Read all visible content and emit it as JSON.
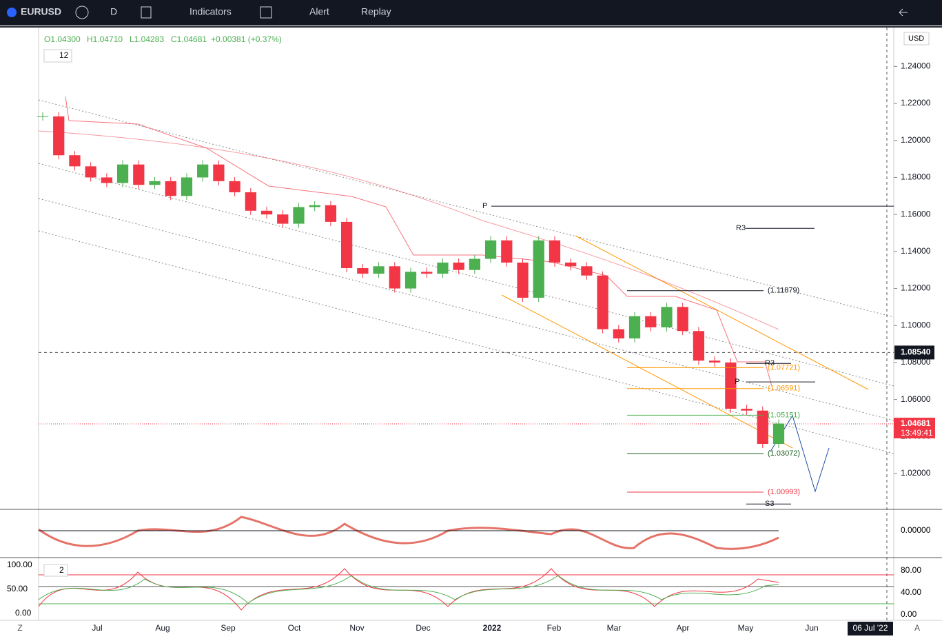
{
  "toolbar": {
    "symbol": "EURUSD",
    "interval": "D",
    "indicators": "Indicators",
    "alert": "Alert",
    "replay": "Replay"
  },
  "legend": {
    "open": "O1.04300",
    "high": "H1.04710",
    "low": "L1.04283",
    "close": "C1.04681",
    "change": "+0.00381 (+0.37%)",
    "indicator_count": "12"
  },
  "currency": "USD",
  "price_axis": {
    "ylim": [
      1.001,
      1.261
    ],
    "ticks": [
      {
        "value": 1.24,
        "label": "1.24000"
      },
      {
        "value": 1.22,
        "label": "1.22000"
      },
      {
        "value": 1.2,
        "label": "1.20000"
      },
      {
        "value": 1.18,
        "label": "1.18000"
      },
      {
        "value": 1.16,
        "label": "1.16000"
      },
      {
        "value": 1.14,
        "label": "1.14000"
      },
      {
        "value": 1.12,
        "label": "1.12000"
      },
      {
        "value": 1.1,
        "label": "1.10000"
      },
      {
        "value": 1.08,
        "label": "1.08000"
      },
      {
        "value": 1.06,
        "label": "1.06000"
      },
      {
        "value": 1.04,
        "label": "1.04000"
      },
      {
        "value": 1.02,
        "label": "1.02000"
      }
    ],
    "crosshair": {
      "value": 1.0854,
      "label": "1.08540"
    },
    "last_price": {
      "value": 1.04681,
      "label": "1.04681",
      "countdown": "13:49:41"
    }
  },
  "time_axis": {
    "labels": [
      "Jul",
      "Aug",
      "Sep",
      "Oct",
      "Nov",
      "Dec",
      "2022",
      "Feb",
      "Mar",
      "Apr",
      "May",
      "Jun"
    ],
    "cursor_date": "06 Jul '22",
    "left_button": "Z",
    "right_button": "A"
  },
  "candles": {
    "up_color": "#4caf50",
    "down_color": "#f23645",
    "closes": [
      1.213,
      1.192,
      1.186,
      1.18,
      1.177,
      1.187,
      1.176,
      1.178,
      1.17,
      1.18,
      1.187,
      1.178,
      1.172,
      1.162,
      1.16,
      1.155,
      1.164,
      1.165,
      1.156,
      1.131,
      1.128,
      1.132,
      1.12,
      1.129,
      1.128,
      1.134,
      1.13,
      1.136,
      1.146,
      1.134,
      1.115,
      1.146,
      1.134,
      1.132,
      1.127,
      1.098,
      1.093,
      1.105,
      1.099,
      1.11,
      1.097,
      1.081,
      1.08,
      1.055,
      1.054,
      1.036,
      1.047
    ]
  },
  "levels": [
    {
      "value": 1.1645,
      "label": "P",
      "color": "#131722"
    },
    {
      "value": 1.1525,
      "label": "R3",
      "color": "#131722"
    },
    {
      "value": 1.11879,
      "label": "(1.11879)",
      "color": "#131722"
    },
    {
      "value": 1.0795,
      "label": "R3",
      "color": "#131722"
    },
    {
      "value": 1.07721,
      "label": "(1.07721)",
      "color": "#ff9800"
    },
    {
      "value": 1.0695,
      "label": "P",
      "color": "#131722"
    },
    {
      "value": 1.06591,
      "label": "(1.06591)",
      "color": "#ff9800"
    },
    {
      "value": 1.05151,
      "label": "(1.05151)",
      "color": "#4caf50"
    },
    {
      "value": 1.03072,
      "label": "(1.03072)",
      "color": "#1b5e20"
    },
    {
      "value": 1.00993,
      "label": "(1.00993)",
      "color": "#f23645"
    },
    {
      "value": 1.0035,
      "label": "S3",
      "color": "#131722"
    }
  ],
  "panes": {
    "macd_zero": "0.00000",
    "stoch_left": [
      "100.00",
      "50.00",
      "0.00"
    ],
    "stoch_right": [
      "80.00",
      "40.00",
      "0.00"
    ],
    "stoch_count": "2"
  }
}
